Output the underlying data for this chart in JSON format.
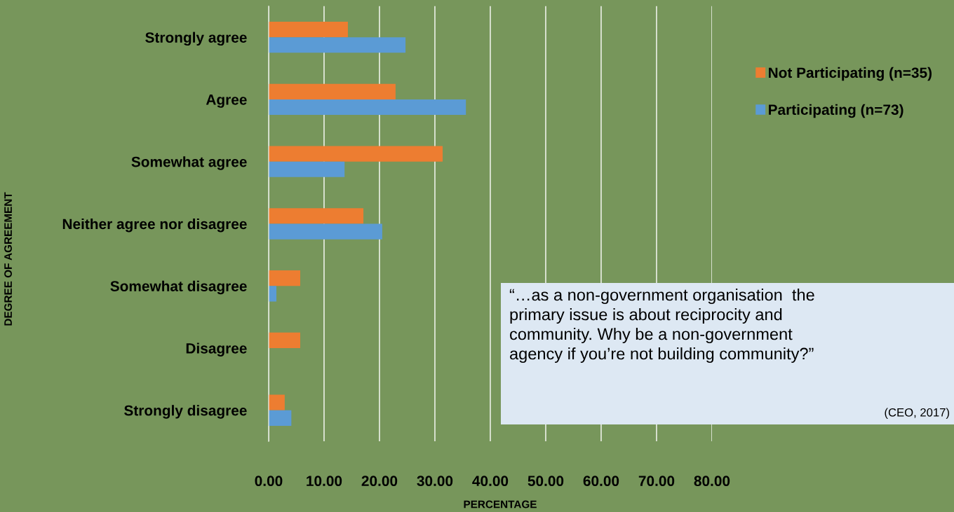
{
  "chart_data": {
    "type": "bar",
    "orientation": "horizontal",
    "xlabel": "PERCENTAGE",
    "ylabel": "DEGREE OF AGREEMENT",
    "categories": [
      "Strongly agree",
      "Agree",
      "Somewhat agree",
      "Neither agree nor disagree",
      "Somewhat disagree",
      "Disagree",
      "Strongly disagree"
    ],
    "series": [
      {
        "name": "Not Participating (n=35)",
        "color": "#ed7d31",
        "values": [
          14.3,
          22.9,
          31.4,
          17.1,
          5.7,
          5.7,
          2.9
        ]
      },
      {
        "name": "Participating (n=73)",
        "color": "#5b9bd5",
        "values": [
          24.7,
          35.6,
          13.7,
          20.5,
          1.4,
          0,
          4.1
        ]
      }
    ],
    "xlim": [
      0,
      80
    ],
    "xticks": [
      {
        "value": 0,
        "label": "0.00"
      },
      {
        "value": 10,
        "label": "10.00"
      },
      {
        "value": 20,
        "label": "20.00"
      },
      {
        "value": 30,
        "label": "30.00"
      },
      {
        "value": 40,
        "label": "40.00"
      },
      {
        "value": 50,
        "label": "50.00"
      },
      {
        "value": 60,
        "label": "60.00"
      },
      {
        "value": 70,
        "label": "70.00"
      },
      {
        "value": 80,
        "label": "80.00"
      }
    ],
    "grid": "x",
    "legend": "right",
    "annotations": [
      "“…as a non-government organisation  the\nprimary issue is about reciprocity and\ncommunity. Why be a non-government\nagency if you’re not building community?”",
      "(CEO, 2017)"
    ]
  }
}
